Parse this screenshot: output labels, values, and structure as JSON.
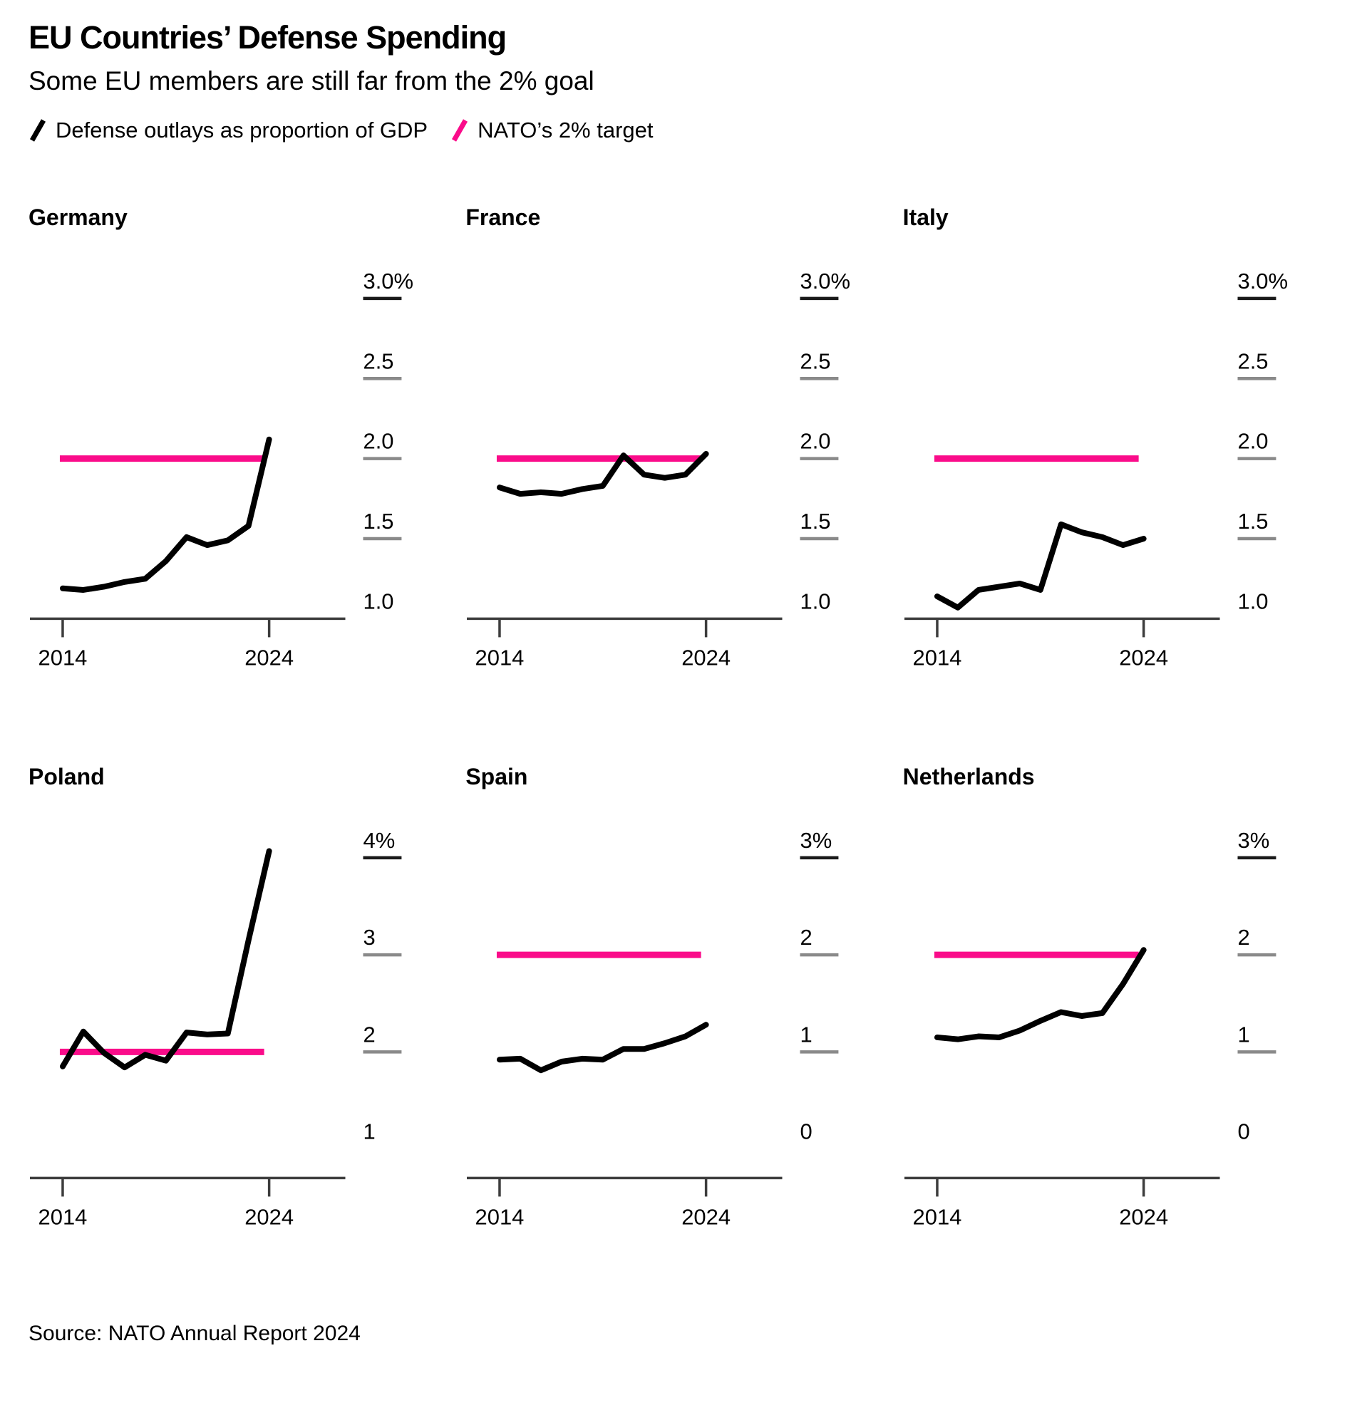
{
  "header": {
    "title": "EU Countries’ Defense Spending",
    "subtitle": "Some EU members are still far from the 2% goal"
  },
  "legend": {
    "series_label": "Defense outlays as proportion of GDP",
    "target_label": "NATO’s 2% target"
  },
  "source": "Source: NATO Annual Report 2024",
  "colors": {
    "line": "#000000",
    "target": "#fa0c8a",
    "axis": "#3d3d3d",
    "tick_top": "#1a1a1a",
    "tick": "#8a8a8a",
    "text": "#000000"
  },
  "chart_data": {
    "type": "line",
    "x": [
      2014,
      2015,
      2016,
      2017,
      2018,
      2019,
      2020,
      2021,
      2022,
      2023,
      2024
    ],
    "x_tick_labels": [
      "2014",
      "2024"
    ],
    "xlabel": "",
    "ylabel": "Defense outlays as proportion of GDP (%)",
    "target_value": 2.0,
    "grid": false,
    "legend_position": "top",
    "series": [
      {
        "name": "Germany",
        "values": [
          1.19,
          1.18,
          1.2,
          1.23,
          1.25,
          1.36,
          1.51,
          1.46,
          1.49,
          1.58,
          2.12
        ],
        "yticks": {
          "labels": [
            "3.0%",
            "2.5",
            "2.0",
            "1.5",
            "1.0"
          ],
          "values": [
            3.0,
            2.5,
            2.0,
            1.5,
            1.0
          ],
          "top": 3.0,
          "baseline_value": 1.0
        }
      },
      {
        "name": "France",
        "values": [
          1.82,
          1.78,
          1.79,
          1.78,
          1.81,
          1.83,
          2.02,
          1.9,
          1.88,
          1.9,
          2.03
        ],
        "yticks": {
          "labels": [
            "3.0%",
            "2.5",
            "2.0",
            "1.5",
            "1.0"
          ],
          "values": [
            3.0,
            2.5,
            2.0,
            1.5,
            1.0
          ],
          "top": 3.0,
          "baseline_value": 1.0
        }
      },
      {
        "name": "Italy",
        "values": [
          1.14,
          1.07,
          1.18,
          1.2,
          1.22,
          1.18,
          1.59,
          1.54,
          1.51,
          1.46,
          1.5
        ],
        "yticks": {
          "labels": [
            "3.0%",
            "2.5",
            "2.0",
            "1.5",
            "1.0"
          ],
          "values": [
            3.0,
            2.5,
            2.0,
            1.5,
            1.0
          ],
          "top": 3.0,
          "baseline_value": 1.0
        }
      },
      {
        "name": "Poland",
        "values": [
          1.85,
          2.21,
          1.99,
          1.84,
          1.97,
          1.91,
          2.2,
          2.18,
          2.19,
          3.15,
          4.07
        ],
        "yticks": {
          "labels": [
            "4%",
            "3",
            "2",
            "1"
          ],
          "values": [
            4.0,
            3.0,
            2.0,
            1.0
          ],
          "top": 4.0,
          "baseline_value": 0.7
        }
      },
      {
        "name": "Spain",
        "values": [
          0.92,
          0.93,
          0.81,
          0.9,
          0.93,
          0.92,
          1.03,
          1.03,
          1.09,
          1.16,
          1.28
        ],
        "yticks": {
          "labels": [
            "3%",
            "2",
            "1",
            "0"
          ],
          "values": [
            3.0,
            2.0,
            1.0,
            0.0
          ],
          "top": 3.0,
          "baseline_value": -0.3
        }
      },
      {
        "name": "Netherlands",
        "values": [
          1.15,
          1.13,
          1.16,
          1.15,
          1.22,
          1.32,
          1.41,
          1.37,
          1.4,
          1.7,
          2.05
        ],
        "yticks": {
          "labels": [
            "3%",
            "2",
            "1",
            "0"
          ],
          "values": [
            3.0,
            2.0,
            1.0,
            0.0
          ],
          "top": 3.0,
          "baseline_value": -0.3
        }
      }
    ]
  }
}
